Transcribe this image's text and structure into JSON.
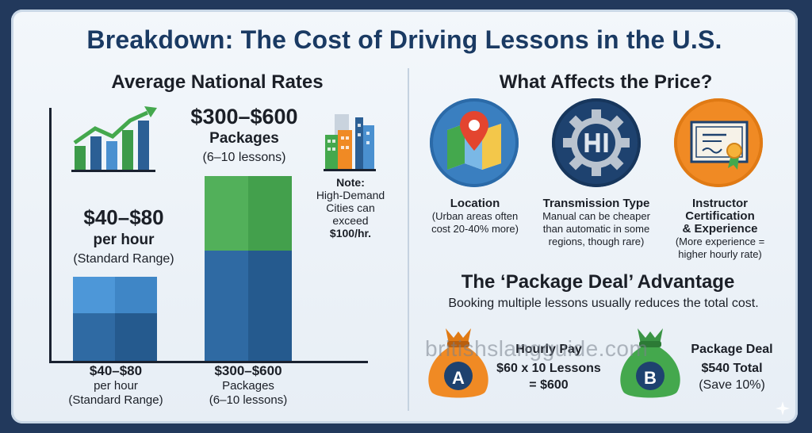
{
  "title": "Breakdown: The Cost of Driving Lessons in the U.S.",
  "left": {
    "heading": "Average National Rates",
    "hourly": {
      "price": "$40–$80",
      "unit": "per hour",
      "note": "(Standard Range)"
    },
    "packages": {
      "price": "$300–$600",
      "unit": "Packages",
      "note": "(6–10 lessons)"
    },
    "city_note": {
      "label": "Note:",
      "line1": "High-Demand",
      "line2": "Cities can",
      "line3": "exceed",
      "line4": "$100/hr."
    },
    "axis_labels": {
      "hourly": {
        "line1": "$40–$80",
        "line2": "per hour",
        "line3": "(Standard Range)"
      },
      "packages": {
        "line1": "$300–$600",
        "line2": "Packages",
        "line3": "(6–10 lessons)"
      }
    }
  },
  "right": {
    "heading": "What Affects the Price?",
    "factors": [
      {
        "title": "Location",
        "desc1": "(Urban areas often",
        "desc2": "cost 20-40% more)",
        "desc3": ""
      },
      {
        "title": "Transmission Type",
        "desc1": "Manual can be cheaper",
        "desc2": "than automatic in some",
        "desc3": "regions, though rare)"
      },
      {
        "title": "Instructor",
        "title2": "Certification",
        "title3": "& Experience",
        "desc1": "(More experience =",
        "desc2": "higher hourly rate)"
      }
    ],
    "package_heading": "The ‘Package Deal’ Advantage",
    "package_sub": "Booking multiple lessons usually reduces the total cost.",
    "option_a": {
      "letter": "A",
      "title": "Hourly Pay",
      "line1": "$60 x 10 Lessons",
      "line2": "= $600"
    },
    "option_b": {
      "letter": "B",
      "title": "Package Deal",
      "line1": "$540 Total",
      "line2": "(Save 10%)"
    },
    "watermark": "britishslangguide.com"
  },
  "colors": {
    "title": "#1a3a63",
    "blue_light": "#4a90d0",
    "blue_dark": "#2d5f96",
    "green": "#44a84d",
    "navy": "#1d4375",
    "orange": "#f08a24"
  }
}
